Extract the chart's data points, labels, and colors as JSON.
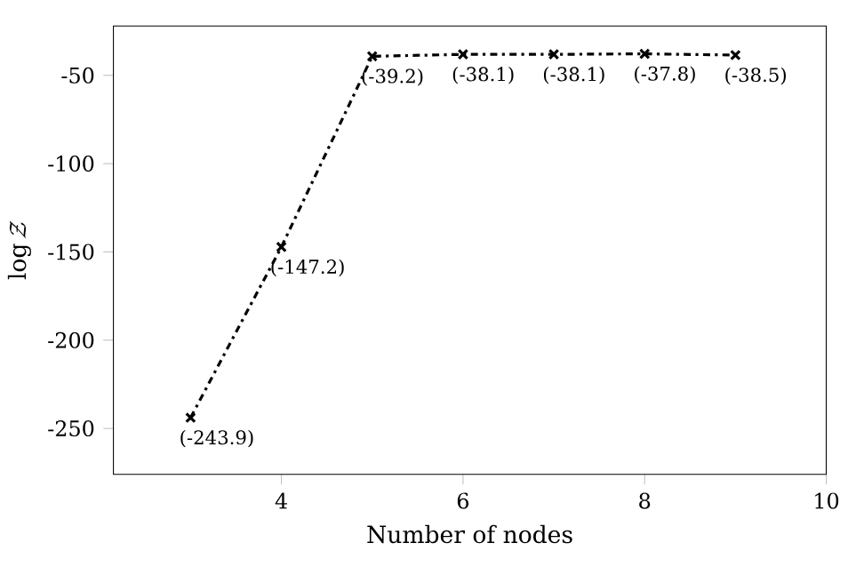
{
  "chart_data": {
    "type": "line",
    "xlabel": "Number of nodes",
    "ylabel": "\\log \\mathcal{Z}",
    "x": [
      3,
      4,
      5,
      6,
      7,
      8,
      9
    ],
    "values": [
      -243.9,
      -147.2,
      -39.2,
      -38.1,
      -38.1,
      -37.8,
      -38.5
    ],
    "value_labels": [
      "(-243.9)",
      "(-147.2)",
      "(-39.2)",
      "(-38.1)",
      "(-38.1)",
      "(-37.8)",
      "(-38.5)"
    ],
    "color": "#000000",
    "marker": "cross",
    "line_style": "dashed",
    "xlim": [
      2.15,
      10
    ],
    "xticks": [
      4,
      6,
      8,
      10
    ],
    "ylim": [
      -276,
      -22
    ],
    "yticks": [
      -250,
      -200,
      -150,
      -100,
      -50
    ]
  }
}
